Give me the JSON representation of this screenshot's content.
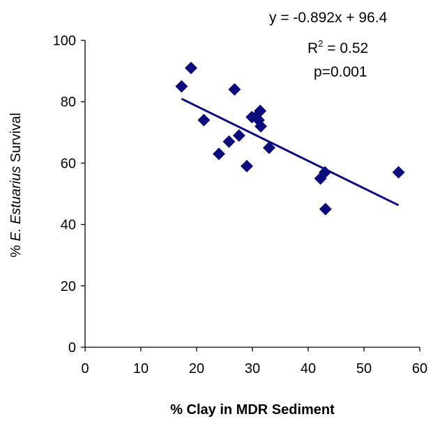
{
  "chart_data": {
    "type": "scatter",
    "title": "",
    "xlabel": "% Clay in MDR Sediment",
    "ylabel": {
      "prefix": "% ",
      "italic": "E. Estuarius",
      "suffix": " Survival"
    },
    "xlim": [
      0,
      60
    ],
    "ylim": [
      0,
      100
    ],
    "xticks": [
      0,
      10,
      20,
      30,
      40,
      50,
      60
    ],
    "yticks": [
      0,
      20,
      40,
      60,
      80,
      100
    ],
    "grid": false,
    "legend": "none",
    "series": [
      {
        "marker": "diamond",
        "color": "#0b0b7e",
        "points": [
          {
            "x": 17.3,
            "y": 85
          },
          {
            "x": 19.0,
            "y": 91
          },
          {
            "x": 21.3,
            "y": 74
          },
          {
            "x": 24.0,
            "y": 63
          },
          {
            "x": 25.8,
            "y": 67
          },
          {
            "x": 26.8,
            "y": 84
          },
          {
            "x": 27.6,
            "y": 69
          },
          {
            "x": 29.0,
            "y": 59
          },
          {
            "x": 29.9,
            "y": 75
          },
          {
            "x": 30.6,
            "y": 75
          },
          {
            "x": 31.1,
            "y": 74
          },
          {
            "x": 31.5,
            "y": 72
          },
          {
            "x": 31.4,
            "y": 77
          },
          {
            "x": 33.0,
            "y": 65
          },
          {
            "x": 42.2,
            "y": 55
          },
          {
            "x": 43.0,
            "y": 57
          },
          {
            "x": 43.1,
            "y": 45
          },
          {
            "x": 56.2,
            "y": 57
          }
        ]
      }
    ],
    "trendline": {
      "color": "#0b0b7e",
      "slope": -0.892,
      "intercept": 96.4,
      "x_range": [
        17.3,
        56.2
      ]
    },
    "annotations": {
      "equation": "y = -0.892x + 96.4",
      "r2_label": "R",
      "r2_sup": "2",
      "r2_value": " = 0.52",
      "p_value": "p=0.001"
    }
  }
}
